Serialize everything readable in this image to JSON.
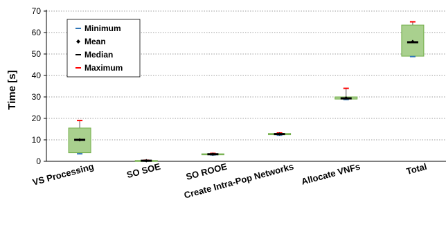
{
  "chart_data": {
    "type": "box",
    "ylabel": "Time [s]",
    "ylim": [
      0,
      70
    ],
    "yticks": [
      0,
      10,
      20,
      30,
      40,
      50,
      60,
      70
    ],
    "grid": "horizontal-dotted",
    "legend_position": "top-left",
    "legend": [
      {
        "key": "minimum",
        "label": "Minimum",
        "color": "#2e75b6",
        "marker": "dash"
      },
      {
        "key": "mean",
        "label": "Mean",
        "color": "#000000",
        "marker": "diamond"
      },
      {
        "key": "median",
        "label": "Median",
        "color": "#000000",
        "marker": "dash"
      },
      {
        "key": "maximum",
        "label": "Maximum",
        "color": "#ff0000",
        "marker": "dash"
      }
    ],
    "box_fill": "#a9d08e",
    "box_stroke": "#70ad47",
    "categories": [
      "VS Processing",
      "SO SOE",
      "SO ROOE",
      "Create Intra-Pop Networks",
      "Allocate VNFs",
      "Total"
    ],
    "boxes": [
      {
        "min": 3.5,
        "q1": 4,
        "median": 10,
        "mean": 10,
        "q3": 15.5,
        "max": 19
      },
      {
        "min": 0.1,
        "q1": 0.2,
        "median": 0.3,
        "mean": 0.3,
        "q3": 0.4,
        "max": 0.5
      },
      {
        "min": 3,
        "q1": 3.1,
        "median": 3.3,
        "mean": 3.3,
        "q3": 3.5,
        "max": 3.7
      },
      {
        "min": 12.2,
        "q1": 12.4,
        "median": 12.7,
        "mean": 12.7,
        "q3": 13,
        "max": 13.2
      },
      {
        "min": 28.8,
        "q1": 29,
        "median": 29.3,
        "mean": 29.5,
        "q3": 30,
        "max": 34
      },
      {
        "min": 48.8,
        "q1": 49,
        "median": 55.5,
        "mean": 55.8,
        "q3": 63.5,
        "max": 65
      }
    ]
  }
}
